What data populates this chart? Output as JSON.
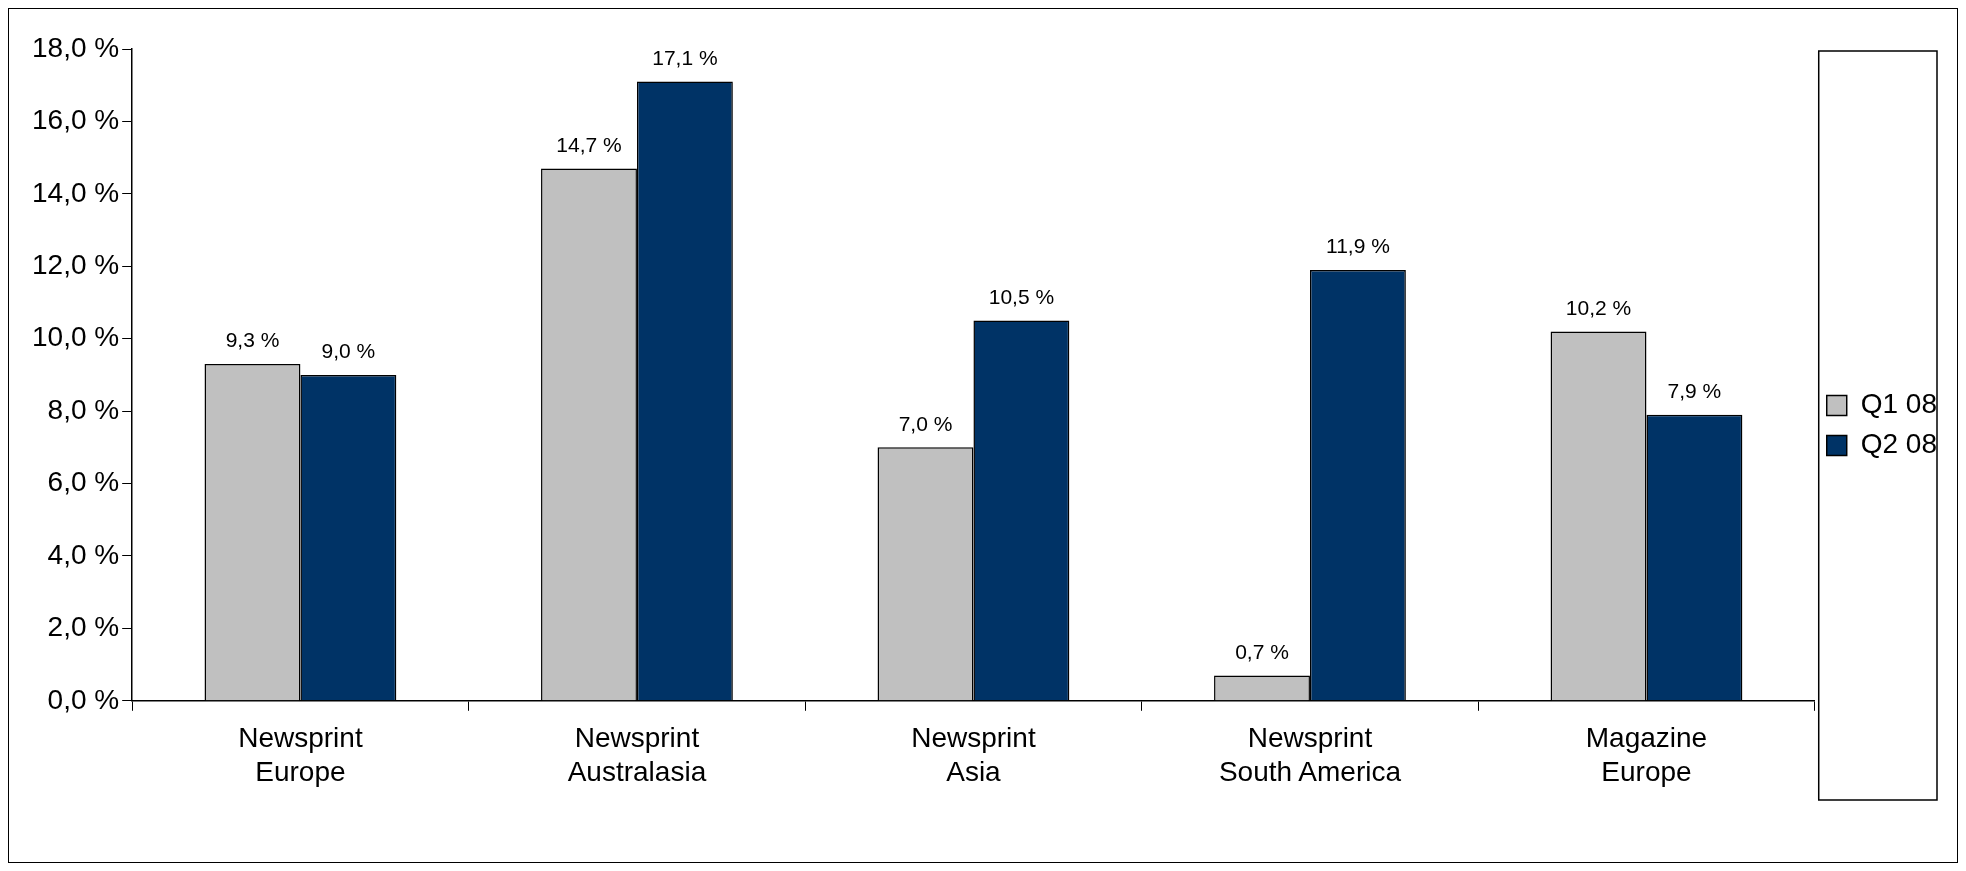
{
  "chart_data": {
    "type": "bar",
    "categories": [
      "Newsprint Europe",
      "Newsprint Australasia",
      "Newsprint Asia",
      "Newsprint South America",
      "Magazine Europe"
    ],
    "series": [
      {
        "name": "Q1 08",
        "color": "#c0c0c0",
        "values": [
          9.3,
          14.7,
          7.0,
          0.7,
          10.2
        ],
        "value_labels": [
          "9,3 %",
          "14,7 %",
          "7,0 %",
          "0,7 %",
          "10,2 %"
        ]
      },
      {
        "name": "Q2 08",
        "color": "#003366",
        "values": [
          9.0,
          17.1,
          10.5,
          11.9,
          7.9
        ],
        "value_labels": [
          "9,0 %",
          "17,1 %",
          "10,5 %",
          "11,9 %",
          "7,9 %"
        ]
      }
    ],
    "ylim": [
      0,
      18
    ],
    "yticks": [
      {
        "value": 0,
        "label": "0,0 %"
      },
      {
        "value": 2,
        "label": "2,0 %"
      },
      {
        "value": 4,
        "label": "4,0 %"
      },
      {
        "value": 6,
        "label": "6,0 %"
      },
      {
        "value": 8,
        "label": "8,0 %"
      },
      {
        "value": 10,
        "label": "10,0 %"
      },
      {
        "value": 12,
        "label": "12,0 %"
      },
      {
        "value": 14,
        "label": "14,0 %"
      },
      {
        "value": 16,
        "label": "16,0 %"
      },
      {
        "value": 18,
        "label": "18,0 %"
      }
    ],
    "grid": false,
    "legend": "right"
  }
}
